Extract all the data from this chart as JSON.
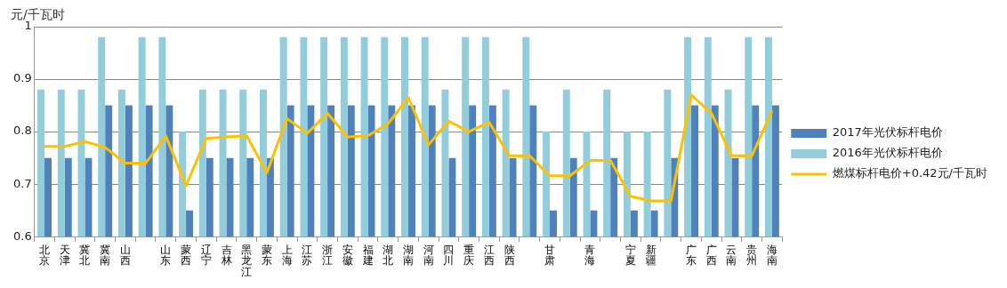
{
  "chart_data": {
    "type": "bar",
    "ylabel": "元/千瓦时",
    "categories": [
      "北京",
      "天津",
      "冀北",
      "冀南",
      "山西",
      null,
      "山东",
      "蒙西",
      "辽宁",
      "吉林",
      "黑龙江",
      "蒙东",
      "上海",
      "江苏",
      "浙江",
      "安徽",
      "福建",
      "湖北",
      "湖南",
      "河南",
      "四川",
      "重庆",
      "江西",
      "陕西",
      null,
      "甘肃",
      null,
      "青海",
      null,
      "宁夏",
      "新疆",
      null,
      "广东",
      "广西",
      "云南",
      "贵州",
      "海南"
    ],
    "series": [
      {
        "name": "2016年光伏标杆电价",
        "color": "#92cddc",
        "values": [
          0.88,
          0.88,
          0.88,
          0.98,
          0.88,
          0.98,
          0.98,
          0.8,
          0.88,
          0.88,
          0.88,
          0.88,
          0.98,
          0.98,
          0.98,
          0.98,
          0.98,
          0.98,
          0.98,
          0.98,
          0.88,
          0.98,
          0.98,
          0.88,
          0.98,
          0.8,
          0.88,
          0.8,
          0.88,
          0.8,
          0.8,
          0.88,
          0.98,
          0.98,
          0.88,
          0.98,
          0.98
        ]
      },
      {
        "name": "2017年光伏标杆电价",
        "color": "#4f81bd",
        "values": [
          0.75,
          0.75,
          0.75,
          0.85,
          0.85,
          0.85,
          0.85,
          0.65,
          0.75,
          0.75,
          0.75,
          0.75,
          0.85,
          0.85,
          0.85,
          0.85,
          0.85,
          0.85,
          0.85,
          0.85,
          0.75,
          0.85,
          0.85,
          0.75,
          0.85,
          0.65,
          0.75,
          0.65,
          0.75,
          0.65,
          0.65,
          0.75,
          0.85,
          0.85,
          0.75,
          0.85,
          0.85
        ]
      },
      {
        "name": "燃煤标杆电价+0.42元/千瓦时",
        "type": "line",
        "color": "#ffc000",
        "values": [
          0.772,
          0.772,
          0.781,
          0.77,
          0.74,
          0.74,
          0.792,
          0.697,
          0.787,
          0.79,
          0.792,
          0.722,
          0.825,
          0.797,
          0.835,
          0.79,
          0.792,
          0.815,
          0.865,
          0.775,
          0.82,
          0.8,
          0.818,
          0.754,
          0.754,
          0.716,
          0.716,
          0.745,
          0.745,
          0.677,
          0.668,
          0.668,
          0.87,
          0.835,
          0.754,
          0.754,
          0.84
        ]
      }
    ],
    "ylim": [
      0.6,
      1
    ],
    "yticks": [
      0.6,
      0.7,
      0.8,
      0.9,
      1
    ],
    "grid": "y",
    "legend": "right",
    "marker": "none",
    "line_style": "solid"
  }
}
